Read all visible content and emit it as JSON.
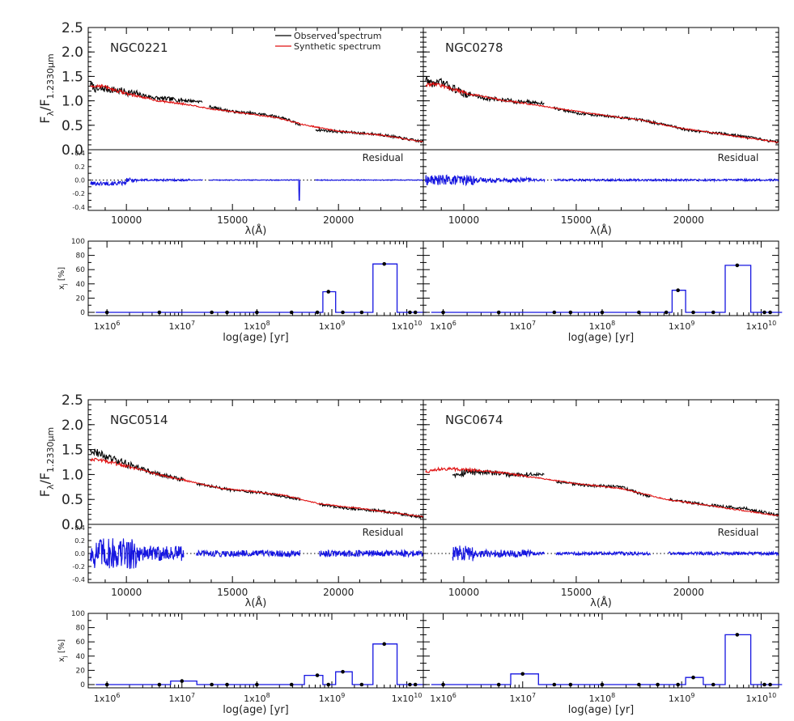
{
  "figure": {
    "legend": {
      "observed": "Observed spectrum",
      "synthetic": "Synthetic spectrum"
    },
    "residual_label": "Residual",
    "spec_ylabel_main": "F",
    "spec_ylabel_sub": "λ",
    "spec_ylabel_den": "/F",
    "spec_ylabel_den_sub": "1.2330μm",
    "wave_xlabel": "λ(Å)",
    "pop_ylabel": "x",
    "pop_ylabel_sub": "j",
    "pop_ylabel_unit": " [%]",
    "age_xlabel": "log(age) [yr]",
    "colors": {
      "observed": "#000000",
      "synthetic": "#e01010",
      "residual": "#1515e0",
      "population": "#1515e0",
      "zero_line": "#000000"
    }
  },
  "chart_data": [
    {
      "type": "line",
      "galaxy": "NGC0221",
      "x_range": [
        8200,
        24000
      ],
      "ylim": [
        0,
        2.5
      ],
      "xticks": [
        10000,
        15000,
        20000
      ],
      "yticks": [
        "0.0",
        "0.5",
        "1.0",
        "1.5",
        "2.0",
        "2.5"
      ],
      "series": [
        {
          "name": "Observed spectrum",
          "gaps": [
            [
              13600,
              13900
            ],
            [
              18200,
              18900
            ]
          ],
          "points": [
            [
              8300,
              1.35
            ],
            [
              8600,
              1.22
            ],
            [
              9000,
              1.25
            ],
            [
              10000,
              1.18
            ],
            [
              11500,
              1.05
            ],
            [
              12500,
              1.02
            ],
            [
              13600,
              0.98
            ],
            [
              13900,
              0.88
            ],
            [
              15000,
              0.78
            ],
            [
              16500,
              0.72
            ],
            [
              17500,
              0.64
            ],
            [
              18200,
              0.5
            ],
            [
              18900,
              0.41
            ],
            [
              20000,
              0.37
            ],
            [
              22000,
              0.31
            ],
            [
              24000,
              0.16
            ]
          ]
        },
        {
          "name": "Synthetic spectrum",
          "points": [
            [
              8300,
              1.3
            ],
            [
              8800,
              1.31
            ],
            [
              10000,
              1.15
            ],
            [
              11500,
              1.0
            ],
            [
              13000,
              0.92
            ],
            [
              14000,
              0.83
            ],
            [
              15000,
              0.78
            ],
            [
              17000,
              0.66
            ],
            [
              18500,
              0.5
            ],
            [
              20000,
              0.38
            ],
            [
              22000,
              0.3
            ],
            [
              24000,
              0.16
            ]
          ]
        }
      ],
      "residual": {
        "ylim": [
          -0.45,
          0.45
        ],
        "yticks": [
          "-0.4",
          "-0.2",
          "0.0",
          "0.2",
          "0.4"
        ],
        "gaps": [
          [
            13600,
            13900
          ],
          [
            18200,
            18900
          ]
        ],
        "dip": [
          [
            18150,
            -0.3
          ]
        ],
        "noise_level": 0.012
      },
      "population": {
        "ages": [
          1000000.0,
          5000000.0,
          25000000.0,
          40000000.0,
          100000000.0,
          290000000.0,
          640000000.0,
          900000000.0,
          1400000000.0,
          2500000000.0,
          5000000000.0,
          11000000000.0,
          13000000000.0
        ],
        "values": [
          0,
          0,
          0,
          0,
          0,
          0,
          0,
          29,
          0,
          0,
          68,
          0,
          0
        ],
        "ylim": [
          0,
          100
        ],
        "yticks": [
          "0",
          "20",
          "40",
          "60",
          "80",
          "100"
        ],
        "xticks": [
          1000000.0,
          10000000.0,
          100000000.0,
          1000000000.0,
          10000000000.0
        ]
      }
    },
    {
      "type": "line",
      "galaxy": "NGC0278",
      "x_range": [
        8200,
        24000
      ],
      "ylim": [
        0,
        2.5
      ],
      "xticks": [
        10000,
        15000,
        20000
      ],
      "yticks": [
        "0.0",
        "0.5",
        "1.0",
        "1.5",
        "2.0",
        "2.5"
      ],
      "series": [
        {
          "name": "Observed spectrum",
          "gaps": [
            [
              13600,
              14000
            ]
          ],
          "points": [
            [
              8300,
              1.45
            ],
            [
              8600,
              1.35
            ],
            [
              9000,
              1.38
            ],
            [
              10000,
              1.15
            ],
            [
              11000,
              1.05
            ],
            [
              12500,
              0.98
            ],
            [
              13600,
              0.95
            ],
            [
              14000,
              0.85
            ],
            [
              15000,
              0.75
            ],
            [
              16500,
              0.68
            ],
            [
              18000,
              0.6
            ],
            [
              20000,
              0.4
            ],
            [
              22000,
              0.3
            ],
            [
              24000,
              0.15
            ]
          ]
        },
        {
          "name": "Synthetic spectrum",
          "points": [
            [
              8300,
              1.32
            ],
            [
              8700,
              1.35
            ],
            [
              10000,
              1.17
            ],
            [
              11500,
              1.03
            ],
            [
              13000,
              0.93
            ],
            [
              14500,
              0.82
            ],
            [
              16000,
              0.72
            ],
            [
              18000,
              0.6
            ],
            [
              19500,
              0.45
            ],
            [
              21000,
              0.35
            ],
            [
              24000,
              0.15
            ]
          ]
        }
      ],
      "residual": {
        "ylim": [
          -0.45,
          0.45
        ],
        "yticks": [],
        "gaps": [
          [
            13600,
            14000
          ]
        ],
        "dip": [],
        "noise_level": 0.03
      },
      "population": {
        "ages": [
          1000000.0,
          5000000.0,
          25000000.0,
          40000000.0,
          100000000.0,
          290000000.0,
          640000000.0,
          900000000.0,
          1400000000.0,
          2500000000.0,
          5000000000.0,
          11000000000.0,
          13000000000.0
        ],
        "values": [
          0,
          0,
          0,
          0,
          0,
          0,
          0,
          31,
          0,
          0,
          66,
          0,
          0
        ],
        "ylim": [
          0,
          100
        ],
        "yticks": [],
        "xticks": [
          1000000.0,
          10000000.0,
          100000000.0,
          1000000000.0,
          10000000000.0
        ]
      }
    },
    {
      "type": "line",
      "galaxy": "NGC0514",
      "x_range": [
        8200,
        24000
      ],
      "ylim": [
        0,
        2.5
      ],
      "xticks": [
        10000,
        15000,
        20000
      ],
      "yticks": [
        "0.0",
        "0.5",
        "1.0",
        "1.5",
        "2.0",
        "2.5"
      ],
      "series": [
        {
          "name": "Observed spectrum",
          "gaps": [
            [
              12700,
              13300
            ],
            [
              18200,
              19100
            ]
          ],
          "points": [
            [
              8300,
              1.5
            ],
            [
              8800,
              1.4
            ],
            [
              9500,
              1.28
            ],
            [
              10500,
              1.15
            ],
            [
              11500,
              1.0
            ],
            [
              12700,
              0.9
            ],
            [
              13300,
              0.82
            ],
            [
              15000,
              0.68
            ],
            [
              16500,
              0.63
            ],
            [
              18200,
              0.5
            ],
            [
              19100,
              0.4
            ],
            [
              20500,
              0.32
            ],
            [
              22000,
              0.27
            ],
            [
              24000,
              0.14
            ]
          ]
        },
        {
          "name": "Synthetic spectrum",
          "points": [
            [
              8300,
              1.3
            ],
            [
              8700,
              1.3
            ],
            [
              10000,
              1.17
            ],
            [
              11500,
              1.0
            ],
            [
              13000,
              0.86
            ],
            [
              14500,
              0.72
            ],
            [
              16000,
              0.66
            ],
            [
              17500,
              0.58
            ],
            [
              19000,
              0.42
            ],
            [
              21000,
              0.32
            ],
            [
              24000,
              0.15
            ]
          ]
        }
      ],
      "residual": {
        "ylim": [
          -0.45,
          0.45
        ],
        "yticks": [
          "-0.4",
          "-0.2",
          "0.0",
          "0.2",
          "0.4"
        ],
        "gaps": [
          [
            12700,
            13300
          ],
          [
            18200,
            19100
          ]
        ],
        "dip": [],
        "noise_level": 0.1
      },
      "population": {
        "ages": [
          1000000.0,
          5000000.0,
          10000000.0,
          25000000.0,
          40000000.0,
          100000000.0,
          290000000.0,
          640000000.0,
          900000000.0,
          1400000000.0,
          2500000000.0,
          5000000000.0,
          11000000000.0,
          13000000000.0
        ],
        "values": [
          0,
          0,
          5,
          0,
          0,
          0,
          0,
          13,
          0,
          18,
          0,
          57,
          0,
          0
        ],
        "ylim": [
          0,
          100
        ],
        "yticks": [
          "0",
          "20",
          "40",
          "60",
          "80",
          "100"
        ],
        "xticks": [
          1000000.0,
          10000000.0,
          100000000.0,
          1000000000.0,
          10000000000.0
        ]
      }
    },
    {
      "type": "line",
      "galaxy": "NGC0674",
      "x_range": [
        8200,
        24000
      ],
      "ylim": [
        0,
        2.5
      ],
      "xticks": [
        10000,
        15000,
        20000
      ],
      "yticks": [
        "0.0",
        "0.5",
        "1.0",
        "1.5",
        "2.0",
        "2.5"
      ],
      "series": [
        {
          "name": "Observed spectrum",
          "gaps": [
            [
              8200,
              9500
            ],
            [
              13600,
              14100
            ],
            [
              18300,
              19100
            ]
          ],
          "points": [
            [
              9500,
              1.02
            ],
            [
              10500,
              1.06
            ],
            [
              12000,
              1.0
            ],
            [
              13600,
              1.0
            ],
            [
              14100,
              0.85
            ],
            [
              15500,
              0.78
            ],
            [
              17000,
              0.75
            ],
            [
              18300,
              0.55
            ],
            [
              19100,
              0.5
            ],
            [
              21000,
              0.38
            ],
            [
              22500,
              0.32
            ],
            [
              24000,
              0.18
            ]
          ]
        },
        {
          "name": "Synthetic spectrum",
          "points": [
            [
              8300,
              1.05
            ],
            [
              9000,
              1.12
            ],
            [
              10000,
              1.1
            ],
            [
              11500,
              1.05
            ],
            [
              13000,
              0.95
            ],
            [
              15000,
              0.82
            ],
            [
              17000,
              0.72
            ],
            [
              19000,
              0.5
            ],
            [
              21000,
              0.37
            ],
            [
              24000,
              0.17
            ]
          ]
        }
      ],
      "residual": {
        "ylim": [
          -0.45,
          0.45
        ],
        "yticks": [],
        "gaps": [
          [
            8200,
            9500
          ],
          [
            13600,
            14100
          ],
          [
            18300,
            19100
          ]
        ],
        "dip": [],
        "noise_level": 0.05
      },
      "population": {
        "ages": [
          1000000.0,
          5000000.0,
          10000000.0,
          25000000.0,
          40000000.0,
          100000000.0,
          290000000.0,
          500000000.0,
          900000000.0,
          1400000000.0,
          2500000000.0,
          5000000000.0,
          11000000000.0,
          13000000000.0
        ],
        "values": [
          0,
          0,
          15,
          0,
          0,
          0,
          0,
          0,
          0,
          10,
          0,
          70,
          0,
          0
        ],
        "ylim": [
          0,
          100
        ],
        "yticks": [],
        "xticks": [
          1000000.0,
          10000000.0,
          100000000.0,
          1000000000.0,
          10000000000.0
        ]
      }
    }
  ]
}
